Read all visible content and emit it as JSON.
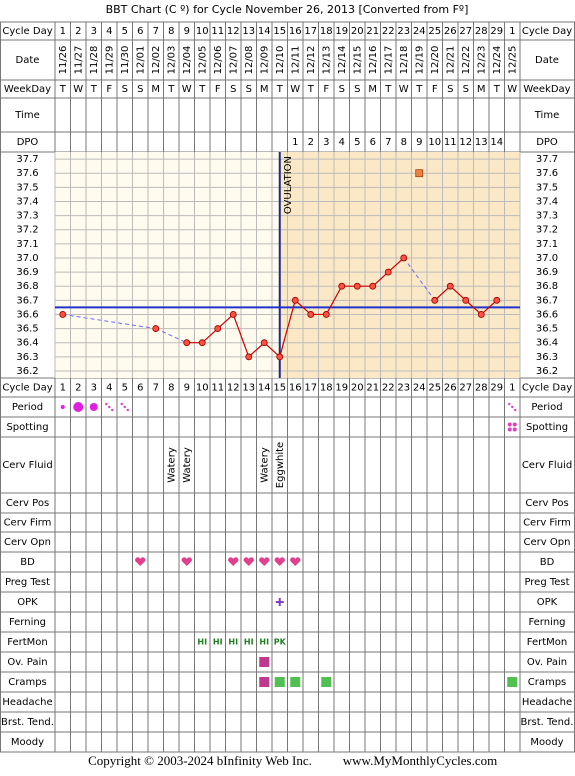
{
  "header": {
    "title": "BBT Chart (C º) for Cycle November 26, 2013  [Converted from Fº]"
  },
  "footer": {
    "copyright": "Copyright © 2003-2024 bInfinity Web Inc.",
    "site": "www.MyMonthlyCycles.com"
  },
  "rows": [
    {
      "label": "Cycle Day",
      "cells": [
        1,
        2,
        3,
        4,
        5,
        6,
        7,
        8,
        9,
        10,
        11,
        12,
        13,
        14,
        15,
        16,
        17,
        18,
        19,
        20,
        21,
        22,
        23,
        24,
        25,
        26,
        27,
        28,
        29,
        1
      ]
    },
    {
      "label": "Date"
    },
    {
      "label": "WeekDay",
      "cells": [
        "T",
        "W",
        "T",
        "F",
        "S",
        "S",
        "M",
        "T",
        "W",
        "T",
        "F",
        "S",
        "S",
        "M",
        "T",
        "W",
        "T",
        "F",
        "S",
        "S",
        "M",
        "T",
        "W",
        "T",
        "F",
        "S",
        "S",
        "M",
        "T",
        "W"
      ]
    },
    {
      "label": "Time"
    },
    {
      "label": "DPO",
      "cells": [
        null,
        null,
        null,
        null,
        null,
        null,
        null,
        null,
        null,
        null,
        null,
        null,
        null,
        null,
        null,
        1,
        2,
        3,
        4,
        5,
        6,
        7,
        8,
        9,
        10,
        11,
        12,
        13,
        14,
        null
      ]
    },
    {
      "label": "Period"
    },
    {
      "label": "Spotting"
    },
    {
      "label": "Cerv Fluid",
      "cells": [
        null,
        null,
        null,
        null,
        null,
        null,
        null,
        "Watery",
        "Watery",
        null,
        null,
        null,
        null,
        "Watery",
        "Eggwhite",
        null,
        null,
        null,
        null,
        null,
        null,
        null,
        null,
        null,
        null,
        null,
        null,
        null,
        null,
        null
      ]
    },
    {
      "label": "Cerv Pos"
    },
    {
      "label": "Cerv Firm"
    },
    {
      "label": "Cerv Opn"
    },
    {
      "label": "BD"
    },
    {
      "label": "Preg Test"
    },
    {
      "label": "OPK"
    },
    {
      "label": "Ferning"
    },
    {
      "label": "FertMon",
      "cells": [
        null,
        null,
        null,
        null,
        null,
        null,
        null,
        null,
        null,
        "HI",
        "HI",
        "HI",
        "HI",
        "HI",
        "PK",
        null,
        null,
        null,
        null,
        null,
        null,
        null,
        null,
        null,
        null,
        null,
        null,
        null,
        null,
        null
      ]
    },
    {
      "label": "Ov. Pain"
    },
    {
      "label": "Cramps"
    },
    {
      "label": "Headache"
    },
    {
      "label": "Brst. Tend."
    },
    {
      "label": "Moody"
    }
  ],
  "chart_data": {
    "type": "line",
    "categories": [
      "11/26",
      "11/27",
      "11/28",
      "11/29",
      "11/30",
      "12/01",
      "12/02",
      "12/03",
      "12/04",
      "12/05",
      "12/06",
      "12/07",
      "12/08",
      "12/09",
      "12/10",
      "12/11",
      "12/12",
      "12/13",
      "12/14",
      "12/15",
      "12/16",
      "12/17",
      "12/18",
      "12/19",
      "12/20",
      "12/21",
      "12/22",
      "12/23",
      "12/24",
      "12/25"
    ],
    "series": [
      {
        "color": "#cc0000",
        "values": [
          36.6,
          null,
          null,
          null,
          null,
          null,
          36.5,
          null,
          36.4,
          36.4,
          36.5,
          36.6,
          36.3,
          36.4,
          36.3,
          36.7,
          36.6,
          36.6,
          36.8,
          36.8,
          36.8,
          36.9,
          37.0,
          null,
          36.7,
          36.8,
          36.7,
          36.6,
          36.7,
          null
        ]
      }
    ],
    "discarded": {
      "color": "#f08040",
      "values": [
        null,
        null,
        null,
        null,
        null,
        null,
        null,
        null,
        null,
        null,
        null,
        null,
        null,
        null,
        null,
        null,
        null,
        null,
        null,
        null,
        null,
        null,
        null,
        37.6,
        null,
        null,
        null,
        null,
        null,
        null
      ]
    },
    "ylim": [
      36.15,
      37.75
    ],
    "yticks": [
      37.7,
      37.6,
      37.5,
      37.4,
      37.3,
      37.2,
      37.1,
      {
        "value": 37,
        "label": "37.0"
      },
      36.9,
      36.8,
      36.7,
      36.6,
      36.5,
      36.4,
      36.3,
      36.2
    ],
    "coverline": 36.65,
    "ovulation_index": 14,
    "annotation": "OVULATION",
    "grid": true
  }
}
